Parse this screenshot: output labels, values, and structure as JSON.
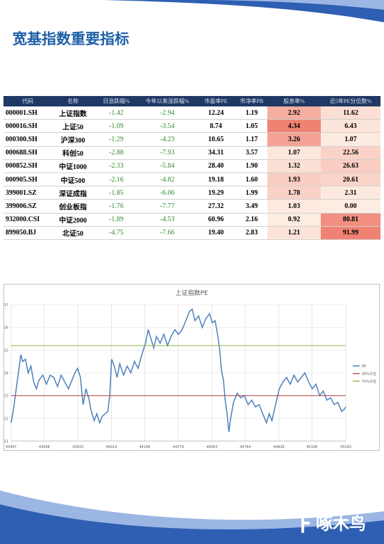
{
  "header": {
    "title": "宽基指数重要指标"
  },
  "table": {
    "columns": [
      "代码",
      "名称",
      "日涨跌幅%",
      "今年以来涨跌幅%",
      "市盈率PE",
      "市净率PB",
      "股息率%",
      "近5年PE分位数%"
    ],
    "rows": [
      [
        "000001.SH",
        "上证指数",
        "-1.42",
        "-2.94",
        "12.24",
        "1.19",
        "2.92",
        "11.62"
      ],
      [
        "000016.SH",
        "上证50",
        "-1.09",
        "-3.54",
        "8.74",
        "1.05",
        "4.34",
        "6.43"
      ],
      [
        "000300.SH",
        "沪深300",
        "-1.29",
        "-4.23",
        "10.65",
        "1.17",
        "3.26",
        "1.07"
      ],
      [
        "000688.SH",
        "科创50",
        "-2.88",
        "-7.93",
        "34.31",
        "3.57",
        "1.07",
        "22.56"
      ],
      [
        "000852.SH",
        "中证1000",
        "-2.33",
        "-5.84",
        "28.40",
        "1.90",
        "1.32",
        "26.63"
      ],
      [
        "000905.SH",
        "中证500",
        "-2.16",
        "-4.82",
        "19.18",
        "1.60",
        "1.93",
        "20.61"
      ],
      [
        "399001.SZ",
        "深证成指",
        "-1.85",
        "-6.06",
        "19.29",
        "1.99",
        "1.78",
        "2.31"
      ],
      [
        "399006.SZ",
        "创业板指",
        "-1.76",
        "-7.77",
        "27.32",
        "3.49",
        "1.03",
        "0.00"
      ],
      [
        "932000.CSI",
        "中证2000",
        "-1.89",
        "-4.53",
        "60.96",
        "2.16",
        "0.92",
        "80.81"
      ],
      [
        "899050.BJ",
        "北证50",
        "-4.75",
        "-7.66",
        "19.40",
        "2.83",
        "1.21",
        "91.99"
      ]
    ]
  },
  "chart_data": {
    "type": "line",
    "title": "上证指数PE",
    "xlim": [
      43467,
      45293
    ],
    "xticks": [
      43467,
      43648,
      43832,
      44014,
      44196,
      44379,
      44563,
      44744,
      44928,
      45108,
      45293
    ],
    "ylim": [
      11,
      17
    ],
    "yticks": [
      11,
      12,
      13,
      14,
      15,
      16,
      17
    ],
    "grid": true,
    "legend": "right",
    "series": [
      {
        "name": "PE",
        "color": "#4a7ebb",
        "x": [
          43467,
          43480,
          43490,
          43500,
          43510,
          43520,
          43530,
          43545,
          43560,
          43575,
          43590,
          43605,
          43620,
          43640,
          43660,
          43680,
          43700,
          43720,
          43740,
          43760,
          43780,
          43800,
          43815,
          43830,
          43845,
          43860,
          43875,
          43890,
          43905,
          43920,
          43935,
          43950,
          43965,
          43980,
          43995,
          44005,
          44015,
          44030,
          44045,
          44060,
          44080,
          44100,
          44120,
          44140,
          44160,
          44180,
          44200,
          44215,
          44230,
          44245,
          44260,
          44280,
          44300,
          44320,
          44340,
          44360,
          44380,
          44400,
          44420,
          44440,
          44455,
          44470,
          44490,
          44510,
          44530,
          44550,
          44565,
          44580,
          44595,
          44605,
          44615,
          44625,
          44635,
          44645,
          44655,
          44665,
          44680,
          44700,
          44720,
          44740,
          44760,
          44780,
          44800,
          44820,
          44840,
          44860,
          44875,
          44890,
          44910,
          44930,
          44950,
          44970,
          44990,
          45010,
          45030,
          45050,
          45070,
          45090,
          45110,
          45130,
          45150,
          45170,
          45190,
          45210,
          45230,
          45250,
          45270,
          45285,
          45293
        ],
        "values": [
          11.8,
          12.4,
          13.0,
          13.6,
          14.2,
          14.8,
          14.5,
          14.6,
          14.0,
          14.3,
          13.6,
          13.3,
          13.7,
          13.9,
          13.5,
          13.9,
          13.8,
          13.4,
          13.9,
          13.6,
          13.3,
          13.7,
          14.0,
          14.2,
          13.8,
          12.6,
          13.3,
          12.9,
          12.3,
          11.9,
          12.2,
          11.8,
          12.1,
          12.2,
          12.3,
          13.0,
          14.6,
          14.3,
          13.8,
          14.4,
          13.9,
          14.3,
          14.0,
          14.5,
          14.2,
          14.8,
          15.3,
          15.9,
          15.5,
          15.1,
          15.6,
          15.3,
          15.7,
          15.2,
          15.6,
          15.9,
          15.7,
          15.9,
          16.3,
          16.7,
          16.8,
          16.3,
          16.5,
          16.0,
          16.4,
          16.6,
          16.2,
          16.3,
          15.6,
          15.0,
          14.1,
          13.7,
          12.8,
          12.2,
          11.4,
          12.0,
          12.7,
          13.1,
          12.9,
          13.0,
          12.6,
          12.8,
          12.5,
          12.6,
          12.2,
          11.8,
          12.2,
          11.9,
          12.6,
          13.3,
          13.6,
          13.8,
          13.5,
          13.9,
          13.6,
          13.8,
          14.0,
          13.6,
          13.3,
          13.5,
          13.0,
          13.2,
          12.8,
          12.9,
          12.6,
          12.7,
          12.3,
          12.4,
          12.5
        ]
      },
      {
        "name": "30%分位",
        "color": "#c0504d",
        "x": [
          43467,
          45293
        ],
        "values": [
          13.0,
          13.0
        ]
      },
      {
        "name": "70%分位",
        "color": "#9bbb59",
        "x": [
          43467,
          45293
        ],
        "values": [
          15.2,
          15.2
        ]
      }
    ]
  },
  "footer": {
    "brand": "啄木鸟"
  }
}
